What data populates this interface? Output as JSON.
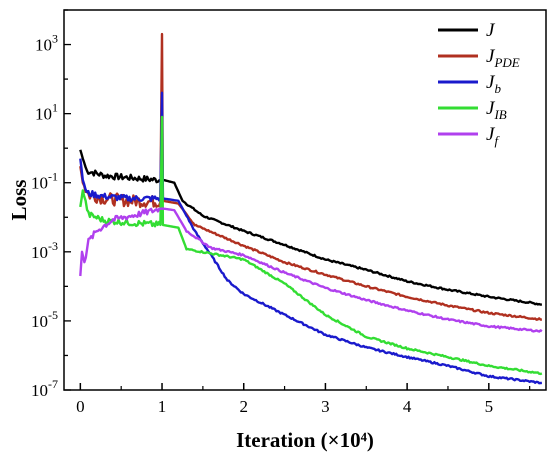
{
  "chart_data": {
    "type": "line",
    "xlabel": "Iteration (×10⁴)",
    "ylabel": "Loss",
    "log_y": true,
    "xlim": [
      -0.2,
      5.7
    ],
    "ylim_exp": [
      -7,
      4
    ],
    "x_ticks": [
      {
        "value": 0,
        "label": "0"
      },
      {
        "value": 1,
        "label": "1"
      },
      {
        "value": 2,
        "label": "2"
      },
      {
        "value": 3,
        "label": "3"
      },
      {
        "value": 4,
        "label": "4"
      },
      {
        "value": 5,
        "label": "5"
      }
    ],
    "y_ticks": [
      {
        "exp": -7,
        "base": "10",
        "sup": "-7"
      },
      {
        "exp": -5,
        "base": "10",
        "sup": "-5"
      },
      {
        "exp": -3,
        "base": "10",
        "sup": "-3"
      },
      {
        "exp": -1,
        "base": "10",
        "sup": "-1"
      },
      {
        "exp": 1,
        "base": "10",
        "sup": "1"
      },
      {
        "exp": 3,
        "base": "10",
        "sup": "3"
      }
    ],
    "legend_position": "top-right",
    "series": [
      {
        "name": "J",
        "sub": "",
        "color": "#000000",
        "points": [
          [
            0,
            0.9
          ],
          [
            0.03,
            0.5
          ],
          [
            0.08,
            0.22
          ],
          [
            0.3,
            0.16
          ],
          [
            0.6,
            0.14
          ],
          [
            0.95,
            0.12
          ],
          [
            1.02,
            0.12
          ],
          [
            1.15,
            0.1
          ],
          [
            1.25,
            0.03
          ],
          [
            1.5,
            0.011
          ],
          [
            2,
            0.004
          ],
          [
            2.5,
            0.0016
          ],
          [
            3,
            0.0006
          ],
          [
            3.5,
            0.0003
          ],
          [
            4,
            0.00014
          ],
          [
            4.5,
            8e-05
          ],
          [
            5,
            5e-05
          ],
          [
            5.65,
            3e-05
          ]
        ]
      },
      {
        "name": "J",
        "sub": "PDE",
        "color": "#b03020",
        "points": [
          [
            0,
            0.3
          ],
          [
            0.03,
            0.1
          ],
          [
            0.1,
            0.045
          ],
          [
            0.3,
            0.035
          ],
          [
            0.6,
            0.03
          ],
          [
            0.98,
            0.028
          ],
          [
            1.0,
            2000
          ],
          [
            1.01,
            0.03
          ],
          [
            1.2,
            0.025
          ],
          [
            1.4,
            0.006
          ],
          [
            2,
            0.0015
          ],
          [
            2.5,
            0.0005
          ],
          [
            3,
            0.00022
          ],
          [
            3.5,
            0.0001
          ],
          [
            4,
            5e-05
          ],
          [
            4.5,
            2.8e-05
          ],
          [
            5,
            1.7e-05
          ],
          [
            5.65,
            1.1e-05
          ]
        ]
      },
      {
        "name": "J",
        "sub": "b",
        "color": "#1a1acc",
        "points": [
          [
            0,
            0.5
          ],
          [
            0.03,
            0.12
          ],
          [
            0.08,
            0.05
          ],
          [
            0.3,
            0.04
          ],
          [
            0.6,
            0.035
          ],
          [
            0.98,
            0.035
          ],
          [
            1.0,
            40
          ],
          [
            1.01,
            0.035
          ],
          [
            1.2,
            0.03
          ],
          [
            1.4,
            0.004
          ],
          [
            1.6,
            0.0008
          ],
          [
            1.8,
            0.00015
          ],
          [
            2,
            6e-05
          ],
          [
            2.5,
            1.5e-05
          ],
          [
            3,
            4e-06
          ],
          [
            3.5,
            1.7e-06
          ],
          [
            4,
            9e-07
          ],
          [
            4.5,
            5e-07
          ],
          [
            5,
            2.5e-07
          ],
          [
            5.65,
            1.6e-07
          ]
        ]
      },
      {
        "name": "J",
        "sub": "IB",
        "color": "#33dd33",
        "points": [
          [
            0,
            0.02
          ],
          [
            0.03,
            0.06
          ],
          [
            0.1,
            0.012
          ],
          [
            0.3,
            0.008
          ],
          [
            0.6,
            0.007
          ],
          [
            0.98,
            0.006
          ],
          [
            1.0,
            8
          ],
          [
            1.01,
            0.006
          ],
          [
            1.2,
            0.005
          ],
          [
            1.3,
            0.0012
          ],
          [
            1.6,
            0.0009
          ],
          [
            2,
            0.0006
          ],
          [
            2.5,
            0.00012
          ],
          [
            3,
            1.5e-05
          ],
          [
            3.5,
            3.5e-06
          ],
          [
            4,
            1.6e-06
          ],
          [
            4.5,
            9e-07
          ],
          [
            5,
            5e-07
          ],
          [
            5.65,
            3e-07
          ]
        ]
      },
      {
        "name": "J",
        "sub": "f",
        "color": "#b040ee",
        "points": [
          [
            0,
            0.0002
          ],
          [
            0.02,
            0.001
          ],
          [
            0.05,
            0.0005
          ],
          [
            0.1,
            0.002
          ],
          [
            0.2,
            0.004
          ],
          [
            0.4,
            0.0085
          ],
          [
            0.7,
            0.012
          ],
          [
            1.0,
            0.018
          ],
          [
            1.15,
            0.016
          ],
          [
            1.3,
            0.004
          ],
          [
            1.6,
            0.0013
          ],
          [
            2,
            0.0008
          ],
          [
            2.5,
            0.00025
          ],
          [
            3,
            9e-05
          ],
          [
            3.5,
            4e-05
          ],
          [
            4,
            2e-05
          ],
          [
            4.5,
            1.1e-05
          ],
          [
            5,
            7e-06
          ],
          [
            5.65,
            5e-06
          ]
        ]
      }
    ]
  }
}
